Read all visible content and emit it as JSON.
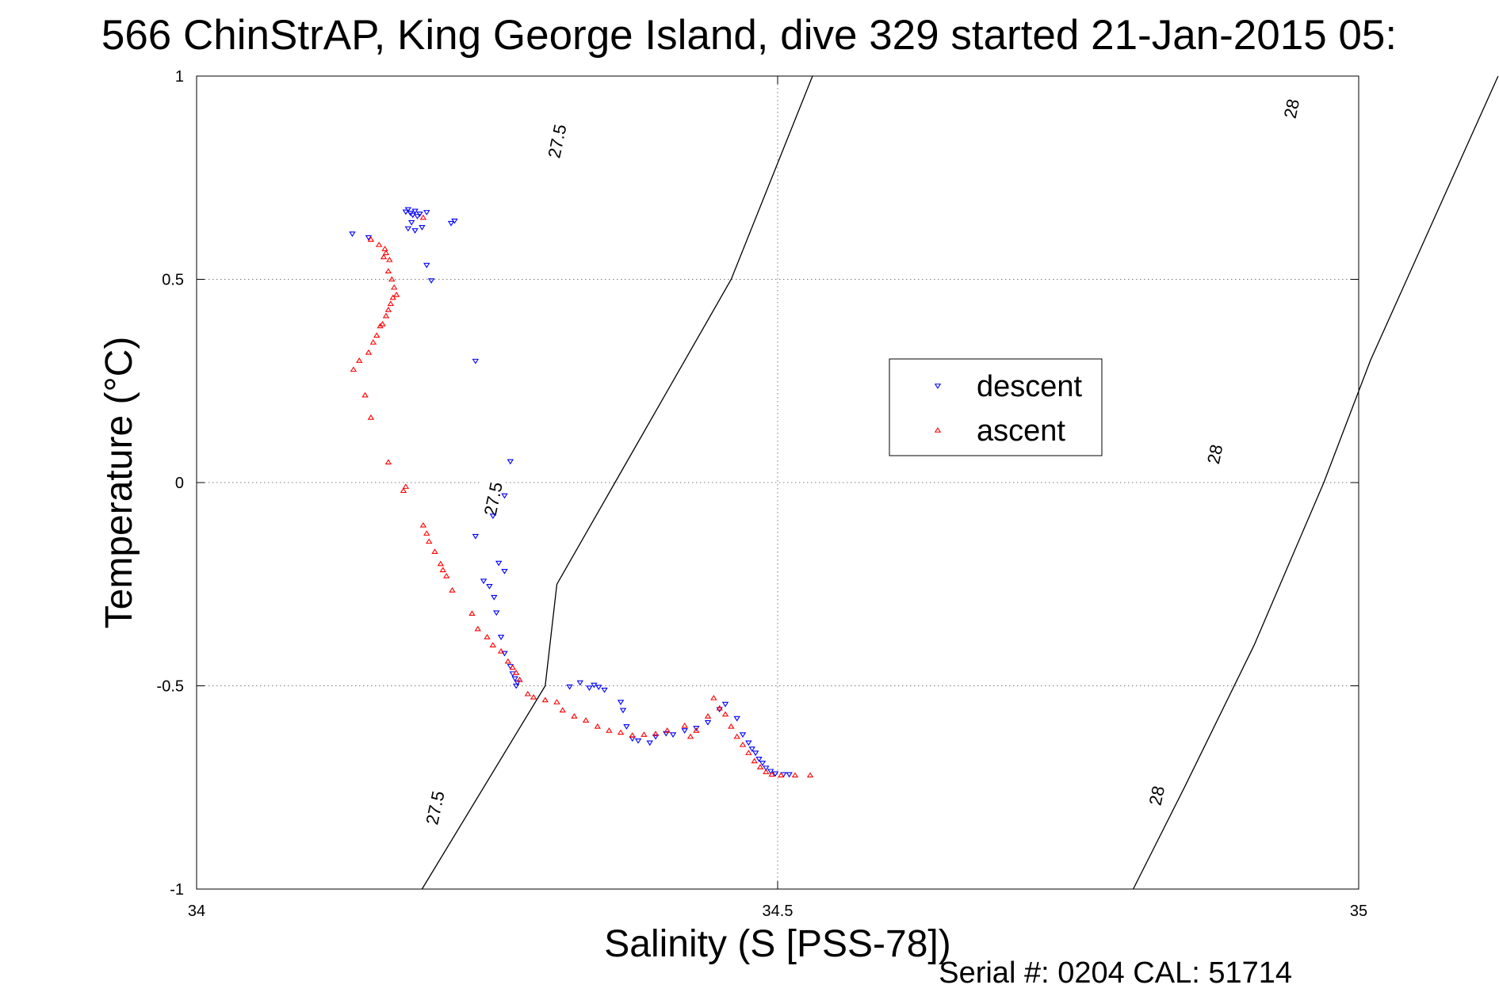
{
  "title": "566 ChinStrAP, King George Island, dive 329 started 21-Jan-2015 05:",
  "footer": "Serial #: 0204  CAL: 51714",
  "chart_data": {
    "type": "scatter",
    "xlabel": "Salinity (S [PSS-78])",
    "ylabel": "Temperature (°C)",
    "xlim": [
      34,
      35
    ],
    "ylim": [
      -1,
      1
    ],
    "x_ticks": [
      "34",
      "34.5",
      "35"
    ],
    "x_tick_values": [
      34,
      34.5,
      35
    ],
    "y_ticks": [
      "-1",
      "-0.5",
      "0",
      "0.5",
      "1"
    ],
    "y_tick_values": [
      -1,
      -0.5,
      0,
      0.5,
      1
    ],
    "grid": true,
    "legend": "upper-right",
    "contours": [
      {
        "level": "27.5",
        "points": [
          [
            34.194,
            -1.0
          ],
          [
            34.3,
            -0.5
          ],
          [
            34.31,
            -0.25
          ],
          [
            34.36,
            0.0
          ],
          [
            34.46,
            0.5
          ],
          [
            34.53,
            1.0
          ]
        ],
        "labels": [
          [
            34.205,
            -0.8
          ],
          [
            34.255,
            -0.04
          ],
          [
            34.31,
            0.84
          ]
        ]
      },
      {
        "level": "28",
        "points": [
          [
            34.806,
            -1.0
          ],
          [
            34.85,
            -0.75
          ],
          [
            34.91,
            -0.4
          ],
          [
            34.97,
            0.0
          ],
          [
            35.01,
            0.3
          ],
          [
            35.12,
            1.0
          ]
        ],
        "labels": [
          [
            34.826,
            -0.77
          ],
          [
            34.876,
            0.07
          ],
          [
            34.942,
            0.92
          ]
        ]
      }
    ],
    "series": [
      {
        "name": "descent",
        "color": "#0000ff",
        "marker": "triangle-down",
        "points": [
          [
            34.134,
            0.612
          ],
          [
            34.148,
            0.603
          ],
          [
            34.18,
            0.666
          ],
          [
            34.182,
            0.672
          ],
          [
            34.184,
            0.663
          ],
          [
            34.186,
            0.658
          ],
          [
            34.188,
            0.668
          ],
          [
            34.19,
            0.655
          ],
          [
            34.192,
            0.661
          ],
          [
            34.185,
            0.64
          ],
          [
            34.188,
            0.62
          ],
          [
            34.182,
            0.625
          ],
          [
            34.194,
            0.628
          ],
          [
            34.198,
            0.665
          ],
          [
            34.219,
            0.638
          ],
          [
            34.222,
            0.644
          ],
          [
            34.198,
            0.535
          ],
          [
            34.202,
            0.497
          ],
          [
            34.24,
            0.299
          ],
          [
            34.27,
            0.052
          ],
          [
            34.265,
            -0.032
          ],
          [
            34.255,
            -0.082
          ],
          [
            34.24,
            -0.132
          ],
          [
            34.26,
            -0.198
          ],
          [
            34.265,
            -0.218
          ],
          [
            34.247,
            -0.242
          ],
          [
            34.252,
            -0.255
          ],
          [
            34.256,
            -0.282
          ],
          [
            34.258,
            -0.32
          ],
          [
            34.262,
            -0.38
          ],
          [
            34.265,
            -0.42
          ],
          [
            34.27,
            -0.452
          ],
          [
            34.272,
            -0.47
          ],
          [
            34.274,
            -0.482
          ],
          [
            34.276,
            -0.492
          ],
          [
            34.275,
            -0.5
          ],
          [
            34.321,
            -0.502
          ],
          [
            34.33,
            -0.492
          ],
          [
            34.338,
            -0.505
          ],
          [
            34.342,
            -0.498
          ],
          [
            34.346,
            -0.503
          ],
          [
            34.351,
            -0.51
          ],
          [
            34.365,
            -0.54
          ],
          [
            34.367,
            -0.56
          ],
          [
            34.37,
            -0.6
          ],
          [
            34.375,
            -0.63
          ],
          [
            34.38,
            -0.635
          ],
          [
            34.39,
            -0.64
          ],
          [
            34.395,
            -0.625
          ],
          [
            34.404,
            -0.617
          ],
          [
            34.41,
            -0.62
          ],
          [
            34.42,
            -0.61
          ],
          [
            34.43,
            -0.604
          ],
          [
            34.44,
            -0.59
          ],
          [
            34.45,
            -0.558
          ],
          [
            34.455,
            -0.545
          ],
          [
            34.465,
            -0.58
          ],
          [
            34.47,
            -0.62
          ],
          [
            34.475,
            -0.64
          ],
          [
            34.478,
            -0.655
          ],
          [
            34.481,
            -0.665
          ],
          [
            34.484,
            -0.68
          ],
          [
            34.487,
            -0.69
          ],
          [
            34.49,
            -0.702
          ],
          [
            34.494,
            -0.71
          ],
          [
            34.498,
            -0.716
          ],
          [
            34.505,
            -0.718
          ],
          [
            34.51,
            -0.718
          ]
        ]
      },
      {
        "name": "ascent",
        "color": "#ff0000",
        "marker": "triangle-up",
        "points": [
          [
            34.195,
            0.652
          ],
          [
            34.15,
            0.598
          ],
          [
            34.157,
            0.585
          ],
          [
            34.162,
            0.575
          ],
          [
            34.163,
            0.565
          ],
          [
            34.161,
            0.555
          ],
          [
            34.166,
            0.548
          ],
          [
            34.165,
            0.52
          ],
          [
            34.168,
            0.5
          ],
          [
            34.17,
            0.48
          ],
          [
            34.172,
            0.462
          ],
          [
            34.169,
            0.455
          ],
          [
            34.167,
            0.44
          ],
          [
            34.165,
            0.425
          ],
          [
            34.163,
            0.41
          ],
          [
            34.16,
            0.39
          ],
          [
            34.158,
            0.385
          ],
          [
            34.155,
            0.362
          ],
          [
            34.152,
            0.345
          ],
          [
            34.148,
            0.32
          ],
          [
            34.14,
            0.3
          ],
          [
            34.135,
            0.278
          ],
          [
            34.145,
            0.215
          ],
          [
            34.15,
            0.16
          ],
          [
            34.165,
            0.05
          ],
          [
            34.18,
            -0.01
          ],
          [
            34.178,
            -0.02
          ],
          [
            34.195,
            -0.105
          ],
          [
            34.198,
            -0.125
          ],
          [
            34.2,
            -0.145
          ],
          [
            34.205,
            -0.17
          ],
          [
            34.21,
            -0.2
          ],
          [
            34.212,
            -0.215
          ],
          [
            34.215,
            -0.23
          ],
          [
            34.22,
            -0.265
          ],
          [
            34.237,
            -0.322
          ],
          [
            34.242,
            -0.36
          ],
          [
            34.25,
            -0.38
          ],
          [
            34.255,
            -0.4
          ],
          [
            34.262,
            -0.415
          ],
          [
            34.268,
            -0.44
          ],
          [
            34.272,
            -0.455
          ],
          [
            34.275,
            -0.468
          ],
          [
            34.278,
            -0.485
          ],
          [
            34.285,
            -0.52
          ],
          [
            34.29,
            -0.528
          ],
          [
            34.3,
            -0.535
          ],
          [
            34.31,
            -0.54
          ],
          [
            34.315,
            -0.56
          ],
          [
            34.325,
            -0.575
          ],
          [
            34.335,
            -0.585
          ],
          [
            34.345,
            -0.6
          ],
          [
            34.355,
            -0.61
          ],
          [
            34.365,
            -0.615
          ],
          [
            34.375,
            -0.622
          ],
          [
            34.385,
            -0.62
          ],
          [
            34.395,
            -0.618
          ],
          [
            34.405,
            -0.61
          ],
          [
            34.42,
            -0.598
          ],
          [
            34.425,
            -0.625
          ],
          [
            34.43,
            -0.61
          ],
          [
            34.44,
            -0.575
          ],
          [
            34.445,
            -0.53
          ],
          [
            34.45,
            -0.555
          ],
          [
            34.455,
            -0.57
          ],
          [
            34.46,
            -0.6
          ],
          [
            34.465,
            -0.625
          ],
          [
            34.47,
            -0.645
          ],
          [
            34.475,
            -0.665
          ],
          [
            34.48,
            -0.685
          ],
          [
            34.485,
            -0.7
          ],
          [
            34.49,
            -0.712
          ],
          [
            34.495,
            -0.718
          ],
          [
            34.503,
            -0.72
          ],
          [
            34.515,
            -0.72
          ],
          [
            34.528,
            -0.72
          ]
        ]
      }
    ]
  }
}
